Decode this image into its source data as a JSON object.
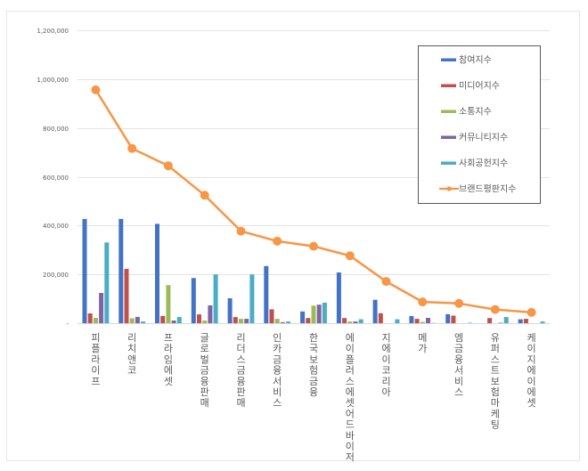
{
  "chart_data": {
    "type": "bar+line",
    "title": "",
    "xlabel": "",
    "ylabel": "",
    "ylim": [
      0,
      1200000
    ],
    "y_ticks": [
      0,
      200000,
      400000,
      600000,
      800000,
      1000000,
      1200000
    ],
    "y_tick_labels": [
      "-",
      "200,000",
      "400,000",
      "600,000",
      "800,000",
      "1,000,000",
      "1,200,000"
    ],
    "grid": true,
    "legend_position": "upper right (inside)",
    "categories": [
      "피플라이프",
      "리치앤코",
      "프라임에셋",
      "글로벌금융판매",
      "리더스금융판매",
      "인카금융서비스",
      "한국보험금융",
      "에이플러스에셋어드바이저",
      "지에이코리아",
      "메가",
      "엠금융서비스",
      "유퍼스트보험마케팅",
      "케이지에이에셋"
    ],
    "series": [
      {
        "name": "참여지수",
        "type": "bar",
        "color": "#4472c4",
        "values": [
          427000,
          427000,
          407000,
          185000,
          102000,
          234000,
          48000,
          208000,
          96000,
          29000,
          37000,
          0,
          16000
        ]
      },
      {
        "name": "미디어지수",
        "type": "bar",
        "color": "#c0504d",
        "values": [
          40000,
          223000,
          30000,
          36000,
          25000,
          57000,
          21000,
          21000,
          41000,
          18000,
          31000,
          21000,
          18000
        ]
      },
      {
        "name": "소통지수",
        "type": "bar",
        "color": "#9bbb59",
        "values": [
          22000,
          20000,
          156000,
          11000,
          18000,
          18000,
          72000,
          7000,
          0,
          5000,
          0,
          0,
          0
        ]
      },
      {
        "name": "커뮤니티지수",
        "type": "bar",
        "color": "#8064a2",
        "values": [
          124000,
          26000,
          11000,
          73000,
          18000,
          4000,
          76000,
          7000,
          0,
          22000,
          0,
          2000,
          0
        ]
      },
      {
        "name": "사회공헌지수",
        "type": "bar",
        "color": "#4bacc6",
        "values": [
          331000,
          7000,
          25000,
          200000,
          200000,
          7000,
          84000,
          16000,
          16000,
          1000,
          2000,
          25000,
          7000
        ]
      },
      {
        "name": "브랜드평판지수",
        "type": "line",
        "color": "#f79646",
        "values": [
          956000,
          716000,
          645000,
          524000,
          377000,
          336000,
          315000,
          276000,
          171000,
          87000,
          81000,
          56000,
          44000
        ]
      }
    ]
  }
}
